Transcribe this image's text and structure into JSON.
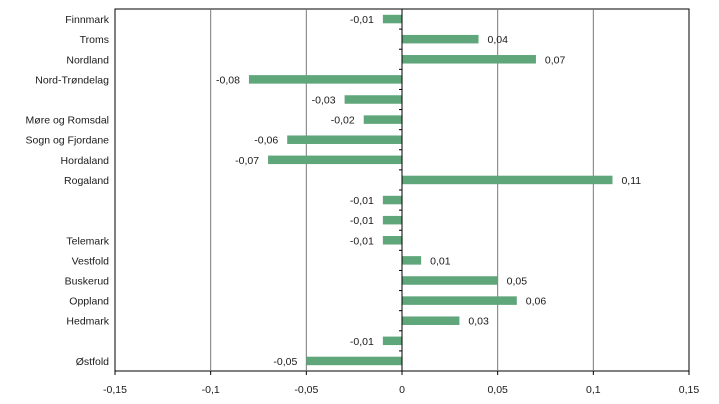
{
  "chart_data": {
    "type": "bar",
    "orientation": "horizontal",
    "title": "",
    "xlabel": "",
    "ylabel": "",
    "xlim": [
      -0.15,
      0.15
    ],
    "grid": "vertical gridlines",
    "legend": "none",
    "bar_color": "#5fa67a",
    "categories": [
      "Finnmark",
      "Troms",
      "Nordland",
      "Nord-Trøndelag",
      "",
      "Møre og Romsdal",
      "Sogn og Fjordane",
      "Hordaland",
      "Rogaland",
      "",
      "",
      "Telemark",
      "Vestfold",
      "Buskerud",
      "Oppland",
      "Hedmark",
      "",
      "Østfold"
    ],
    "values": [
      -0.01,
      0.04,
      0.07,
      -0.08,
      -0.03,
      -0.02,
      -0.06,
      -0.07,
      0.11,
      -0.01,
      -0.01,
      -0.01,
      0.01,
      0.05,
      0.06,
      0.03,
      -0.01,
      -0.05
    ],
    "data_labels": [
      "-0,01",
      "0,04",
      "0,07",
      "-0,08",
      "-0,03",
      "-0,02",
      "-0,06",
      "-0,07",
      "0,11",
      "-0,01",
      "-0,01",
      "-0,01",
      "0,01",
      "0,05",
      "0,06",
      "0,03",
      "-0,01",
      "-0,05"
    ],
    "x_ticks": [
      -0.15,
      -0.1,
      -0.05,
      0,
      0.05,
      0.1,
      0.15
    ],
    "x_tick_labels": [
      "-0,15",
      "-0,1",
      "-0,05",
      "0",
      "0,05",
      "0,1",
      "0,15"
    ]
  }
}
